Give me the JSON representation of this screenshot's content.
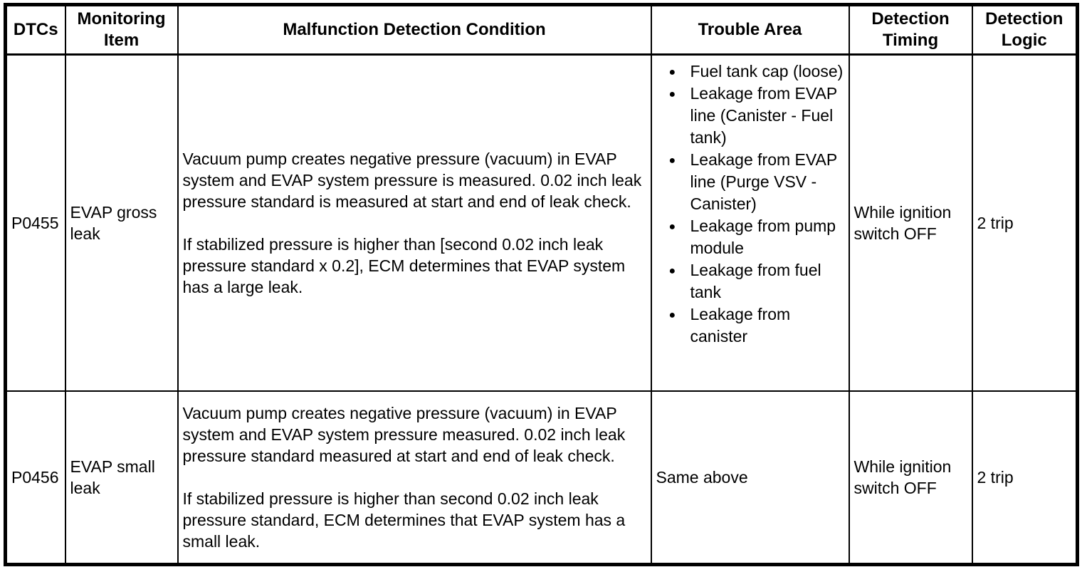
{
  "colors": {
    "border": "#000000",
    "background": "#ffffff",
    "text": "#000000"
  },
  "table": {
    "headers": [
      "DTCs",
      "Monitoring Item",
      "Malfunction Detection Condition",
      "Trouble Area",
      "Detection Timing",
      "Detection Logic"
    ],
    "rows": [
      {
        "dtc": "P0455",
        "monitoring_item": "EVAP gross leak",
        "condition": "Vacuum pump creates negative pressure (vacuum) in EVAP system and EVAP system pressure is measured. 0.02 inch leak pressure standard is measured at start and end of leak check.\n\nIf stabilized pressure is higher than [second 0.02 inch leak pressure standard x 0.2], ECM determines that EVAP system has a large leak.",
        "trouble_area_items": [
          "Fuel tank cap (loose)",
          "Leakage from EVAP line (Canister - Fuel tank)",
          "Leakage from EVAP line (Purge VSV - Canister)",
          "Leakage from pump module",
          "Leakage from fuel tank",
          "Leakage from canister"
        ],
        "detection_timing": "While ignition switch OFF",
        "detection_logic": "2 trip"
      },
      {
        "dtc": "P0456",
        "monitoring_item": "EVAP small leak",
        "condition": "Vacuum pump creates negative pressure (vacuum) in EVAP system and EVAP system pressure measured. 0.02 inch leak pressure standard measured at start and end of leak check.\n\nIf stabilized pressure is higher than second 0.02 inch leak pressure standard, ECM determines that EVAP system has a small leak.",
        "trouble_area": "Same above",
        "detection_timing": "While ignition switch OFF",
        "detection_logic": "2 trip"
      }
    ]
  }
}
